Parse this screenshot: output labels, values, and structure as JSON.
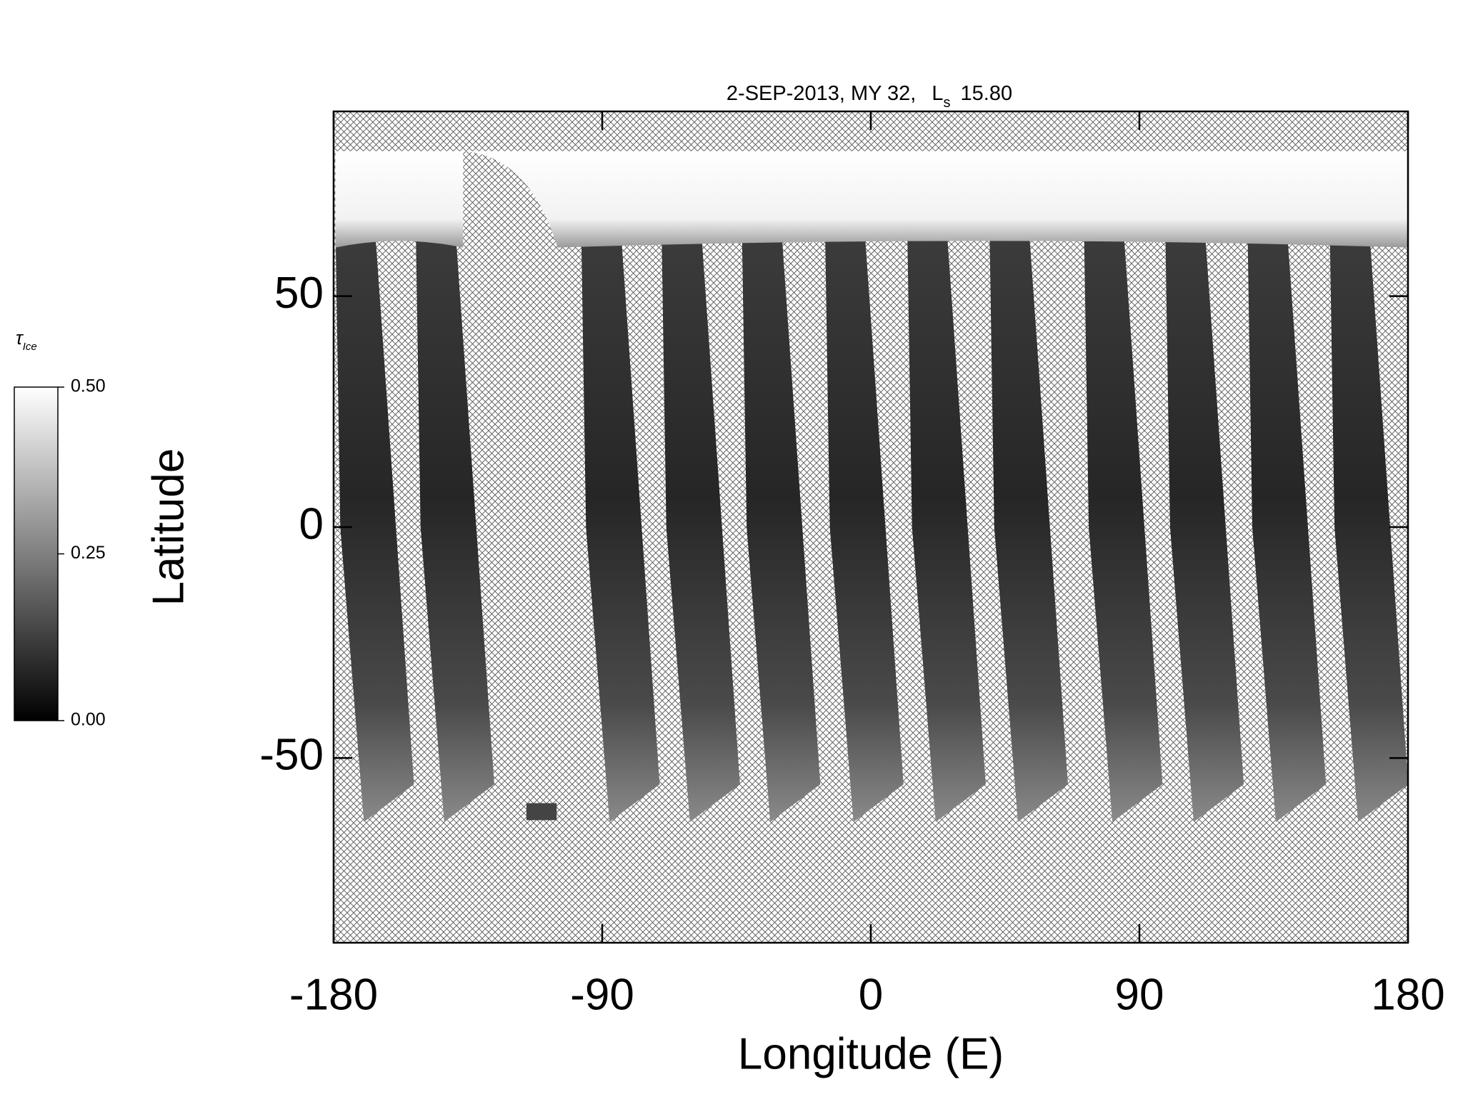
{
  "chart_data": {
    "type": "map",
    "title": "2-SEP-2013, MY 32,",
    "title_symbol": "L",
    "title_subscript": "s",
    "title_value": "15.80",
    "xlabel": "Longitude (E)",
    "ylabel": "Latitude",
    "xlim": [
      -180,
      180
    ],
    "ylim": [
      -90,
      90
    ],
    "xticks": [
      -180,
      -90,
      0,
      90,
      180
    ],
    "yticks": [
      -50,
      0,
      50
    ],
    "colorbar": {
      "label_symbol": "τ",
      "label_subscript": "Ice",
      "lim": [
        0,
        0.5
      ],
      "ticks": [
        {
          "value": 0,
          "label": "0.00"
        },
        {
          "value": 0.25,
          "label": "0.25"
        },
        {
          "value": 0.5,
          "label": "0.50"
        }
      ]
    }
  }
}
